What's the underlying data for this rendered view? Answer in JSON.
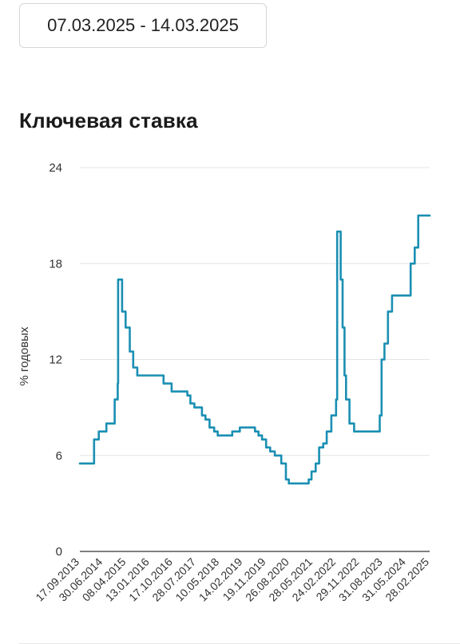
{
  "date_range": {
    "label": "07.03.2025 - 14.03.2025"
  },
  "colors": {
    "line": "#1a8fb3",
    "grid": "#e4e4e4",
    "axis": "#333333"
  },
  "chart_data": {
    "type": "line",
    "title": "Ключевая ставка",
    "xlabel": "",
    "ylabel": "% годовых",
    "ylim": [
      0,
      24
    ],
    "yticks": [
      0,
      6,
      12,
      18,
      24
    ],
    "xlim": [
      "2013-09-13",
      "2025-03-14"
    ],
    "xtick_labels": [
      "17.09.2013",
      "30.06.2014",
      "08.04.2015",
      "13.01.2016",
      "17.10.2016",
      "28.07.2017",
      "10.05.2018",
      "14.02.2019",
      "19.11.2019",
      "26.08.2020",
      "28.05.2021",
      "24.02.2022",
      "29.11.2022",
      "31.08.2023",
      "31.05.2024",
      "28.02.2025"
    ],
    "grid": true,
    "legend": "none",
    "series": [
      {
        "step": true,
        "points": [
          [
            "2013-09-13",
            5.5
          ],
          [
            "2014-03-03",
            7.0
          ],
          [
            "2014-04-28",
            7.5
          ],
          [
            "2014-07-28",
            8.0
          ],
          [
            "2014-11-05",
            9.5
          ],
          [
            "2014-12-12",
            10.5
          ],
          [
            "2014-12-16",
            17.0
          ],
          [
            "2015-02-02",
            15.0
          ],
          [
            "2015-03-16",
            14.0
          ],
          [
            "2015-05-05",
            12.5
          ],
          [
            "2015-06-16",
            11.5
          ],
          [
            "2015-08-03",
            11.0
          ],
          [
            "2016-06-14",
            10.5
          ],
          [
            "2016-09-19",
            10.0
          ],
          [
            "2017-03-27",
            9.75
          ],
          [
            "2017-05-02",
            9.25
          ],
          [
            "2017-06-19",
            9.0
          ],
          [
            "2017-09-18",
            8.5
          ],
          [
            "2017-10-30",
            8.25
          ],
          [
            "2017-12-18",
            7.75
          ],
          [
            "2018-02-12",
            7.5
          ],
          [
            "2018-03-26",
            7.25
          ],
          [
            "2018-09-17",
            7.5
          ],
          [
            "2018-12-17",
            7.75
          ],
          [
            "2019-06-17",
            7.5
          ],
          [
            "2019-07-29",
            7.25
          ],
          [
            "2019-09-09",
            7.0
          ],
          [
            "2019-10-28",
            6.5
          ],
          [
            "2019-12-16",
            6.25
          ],
          [
            "2020-02-10",
            6.0
          ],
          [
            "2020-04-27",
            5.5
          ],
          [
            "2020-06-22",
            4.5
          ],
          [
            "2020-07-27",
            4.25
          ],
          [
            "2021-03-22",
            4.5
          ],
          [
            "2021-04-26",
            5.0
          ],
          [
            "2021-06-15",
            5.5
          ],
          [
            "2021-07-26",
            6.5
          ],
          [
            "2021-09-13",
            6.75
          ],
          [
            "2021-10-25",
            7.5
          ],
          [
            "2021-12-20",
            8.5
          ],
          [
            "2022-02-14",
            9.5
          ],
          [
            "2022-02-28",
            20.0
          ],
          [
            "2022-04-11",
            17.0
          ],
          [
            "2022-05-04",
            14.0
          ],
          [
            "2022-05-27",
            11.0
          ],
          [
            "2022-06-14",
            9.5
          ],
          [
            "2022-07-25",
            8.0
          ],
          [
            "2022-09-19",
            7.5
          ],
          [
            "2023-07-24",
            8.5
          ],
          [
            "2023-08-15",
            12.0
          ],
          [
            "2023-09-18",
            13.0
          ],
          [
            "2023-10-30",
            15.0
          ],
          [
            "2023-12-18",
            16.0
          ],
          [
            "2024-07-29",
            18.0
          ],
          [
            "2024-09-16",
            19.0
          ],
          [
            "2024-10-28",
            21.0
          ],
          [
            "2025-03-14",
            21.0
          ]
        ]
      }
    ]
  }
}
